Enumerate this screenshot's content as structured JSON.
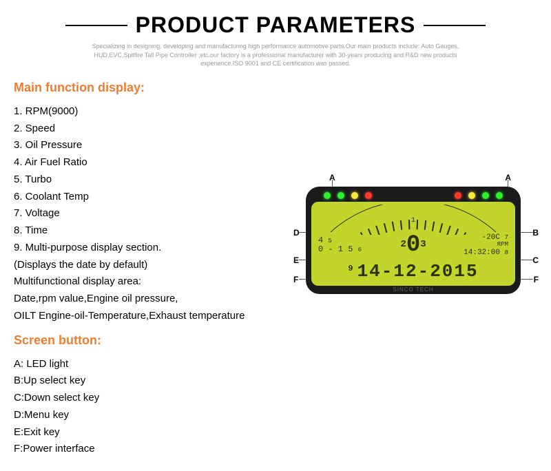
{
  "header": {
    "title": "PRODUCT PARAMETERS",
    "subtitle": "Specializing in designing, developing and manufacturing high performance automotive parts.Our main products include: Auto Gauges, HUD,EVC,Spitfire Tall Pipe Controller ,etc.our factory is a professional manufacturer with 30-years producing and R&D new products experience.ISO 9001 and CE certification was passed."
  },
  "sections": {
    "main_function": {
      "heading": "Main function display:",
      "items": [
        "1. RPM(9000)",
        "2. Speed",
        "3. Oil Pressure",
        "4. Air Fuel Ratio",
        "5. Turbo",
        "6. Coolant Temp",
        "7. Voltage",
        "8. Time",
        "9. Multi-purpose display section.",
        "(Displays the date by default)",
        "Multifunctional display area:",
        "Date,rpm value,Engine oil pressure,",
        "OILT Engine-oil-Temperature,Exhaust temperature"
      ]
    },
    "screen_button": {
      "heading": "Screen button:",
      "items": [
        "A: LED light",
        "B:Up select key",
        "C:Down select key",
        "D:Menu key",
        "E:Exit key",
        "F:Power interface"
      ]
    }
  },
  "gauge": {
    "labels": {
      "A": "A",
      "B": "B",
      "C": "C",
      "D": "D",
      "E": "E",
      "F": "F"
    },
    "led_colors": {
      "left": [
        "#2eef2e",
        "#2eef2e",
        "#f5e838",
        "#ff3a2a"
      ],
      "right": [
        "#ff3a2a",
        "#f5e838",
        "#2eef2e",
        "#2eef2e"
      ]
    },
    "lcd": {
      "bg": "#c3d42a",
      "mid_left_top": "4",
      "mid_left_bot": "0 - 1 5",
      "mid_left_n1": "5",
      "mid_left_n2": "6",
      "center_value": "0",
      "center_n_left": "2",
      "center_n_right": "3",
      "right_top": "-20C",
      "right_mid": "RPM",
      "right_bot": "14:32:00",
      "right_n1": "7",
      "right_n2": "8",
      "arc_n": "1",
      "date_n": "9",
      "date": "14-12-2015",
      "brand": "SINCO TECH"
    },
    "body_color": "#1a1a1a"
  },
  "colors": {
    "accent": "#ed7d31",
    "text": "#000000",
    "muted": "#999999"
  }
}
